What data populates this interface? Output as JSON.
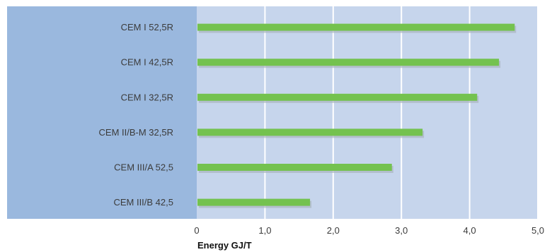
{
  "colors": {
    "label_panel": "#9ab8de",
    "plot_area": "#c6d5ec",
    "gridline": "#ffffff",
    "bar": "#74c24f",
    "bar_shadow": "#a9b3bf"
  },
  "chart_data": {
    "type": "bar",
    "orientation": "horizontal",
    "categories": [
      "CEM I 52,5R",
      "CEM I 42,5R",
      "CEM I 32,5R",
      "CEM II/B-M 32,5R",
      "CEM III/A 52,5",
      "CEM III/B 42,5"
    ],
    "values": [
      4.65,
      4.42,
      4.1,
      3.3,
      2.85,
      1.65
    ],
    "xlabel": "Energy GJ/T",
    "xlim": [
      0,
      5
    ],
    "xticks": [
      0,
      1,
      2,
      3,
      4,
      5
    ],
    "xtick_labels": [
      "0",
      "1,0",
      "2,0",
      "3,0",
      "4,0",
      "5,0"
    ],
    "grid": true,
    "legend": false
  }
}
